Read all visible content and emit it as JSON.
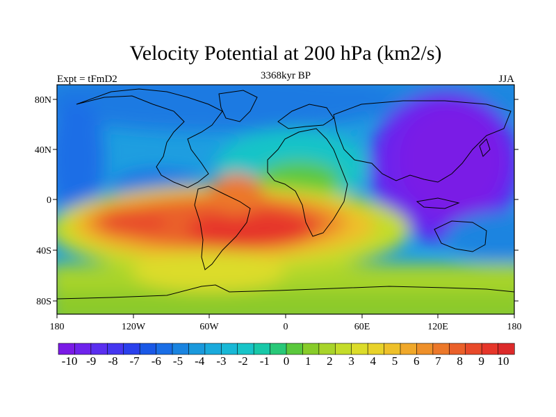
{
  "title": "Velocity Potential at 200 hPa (km2/s)",
  "left_label": "Expt = tFmD2",
  "center_label": "3368kyr BP",
  "right_label": "JJA",
  "map": {
    "lat_ticks": [
      "80N",
      "40N",
      "0",
      "40S",
      "80S"
    ],
    "lon_ticks": [
      "180",
      "120W",
      "60W",
      "0",
      "60E",
      "120E",
      "180"
    ]
  },
  "colorbar": {
    "labels": [
      "-10",
      "-9",
      "-8",
      "-7",
      "-6",
      "-5",
      "-4",
      "-3",
      "-2",
      "-1",
      "0",
      "1",
      "2",
      "3",
      "4",
      "5",
      "6",
      "7",
      "8",
      "9",
      "10"
    ],
    "colors": [
      "#7a1ae6",
      "#6e23ec",
      "#5a2ff0",
      "#4536f0",
      "#2a40ec",
      "#1a58e6",
      "#1a6ee6",
      "#1a84e0",
      "#1a99dc",
      "#1aaadc",
      "#18b8d6",
      "#18c4c8",
      "#18c8a8",
      "#28c878",
      "#5ac83c",
      "#88cc2a",
      "#a8d42a",
      "#c4dc2a",
      "#dcdc2a",
      "#e8d22a",
      "#eec02a",
      "#f0a82a",
      "#ee902a",
      "#ec782a",
      "#ea602a",
      "#e84a2a",
      "#e6362a",
      "#dc2a2a"
    ]
  }
}
